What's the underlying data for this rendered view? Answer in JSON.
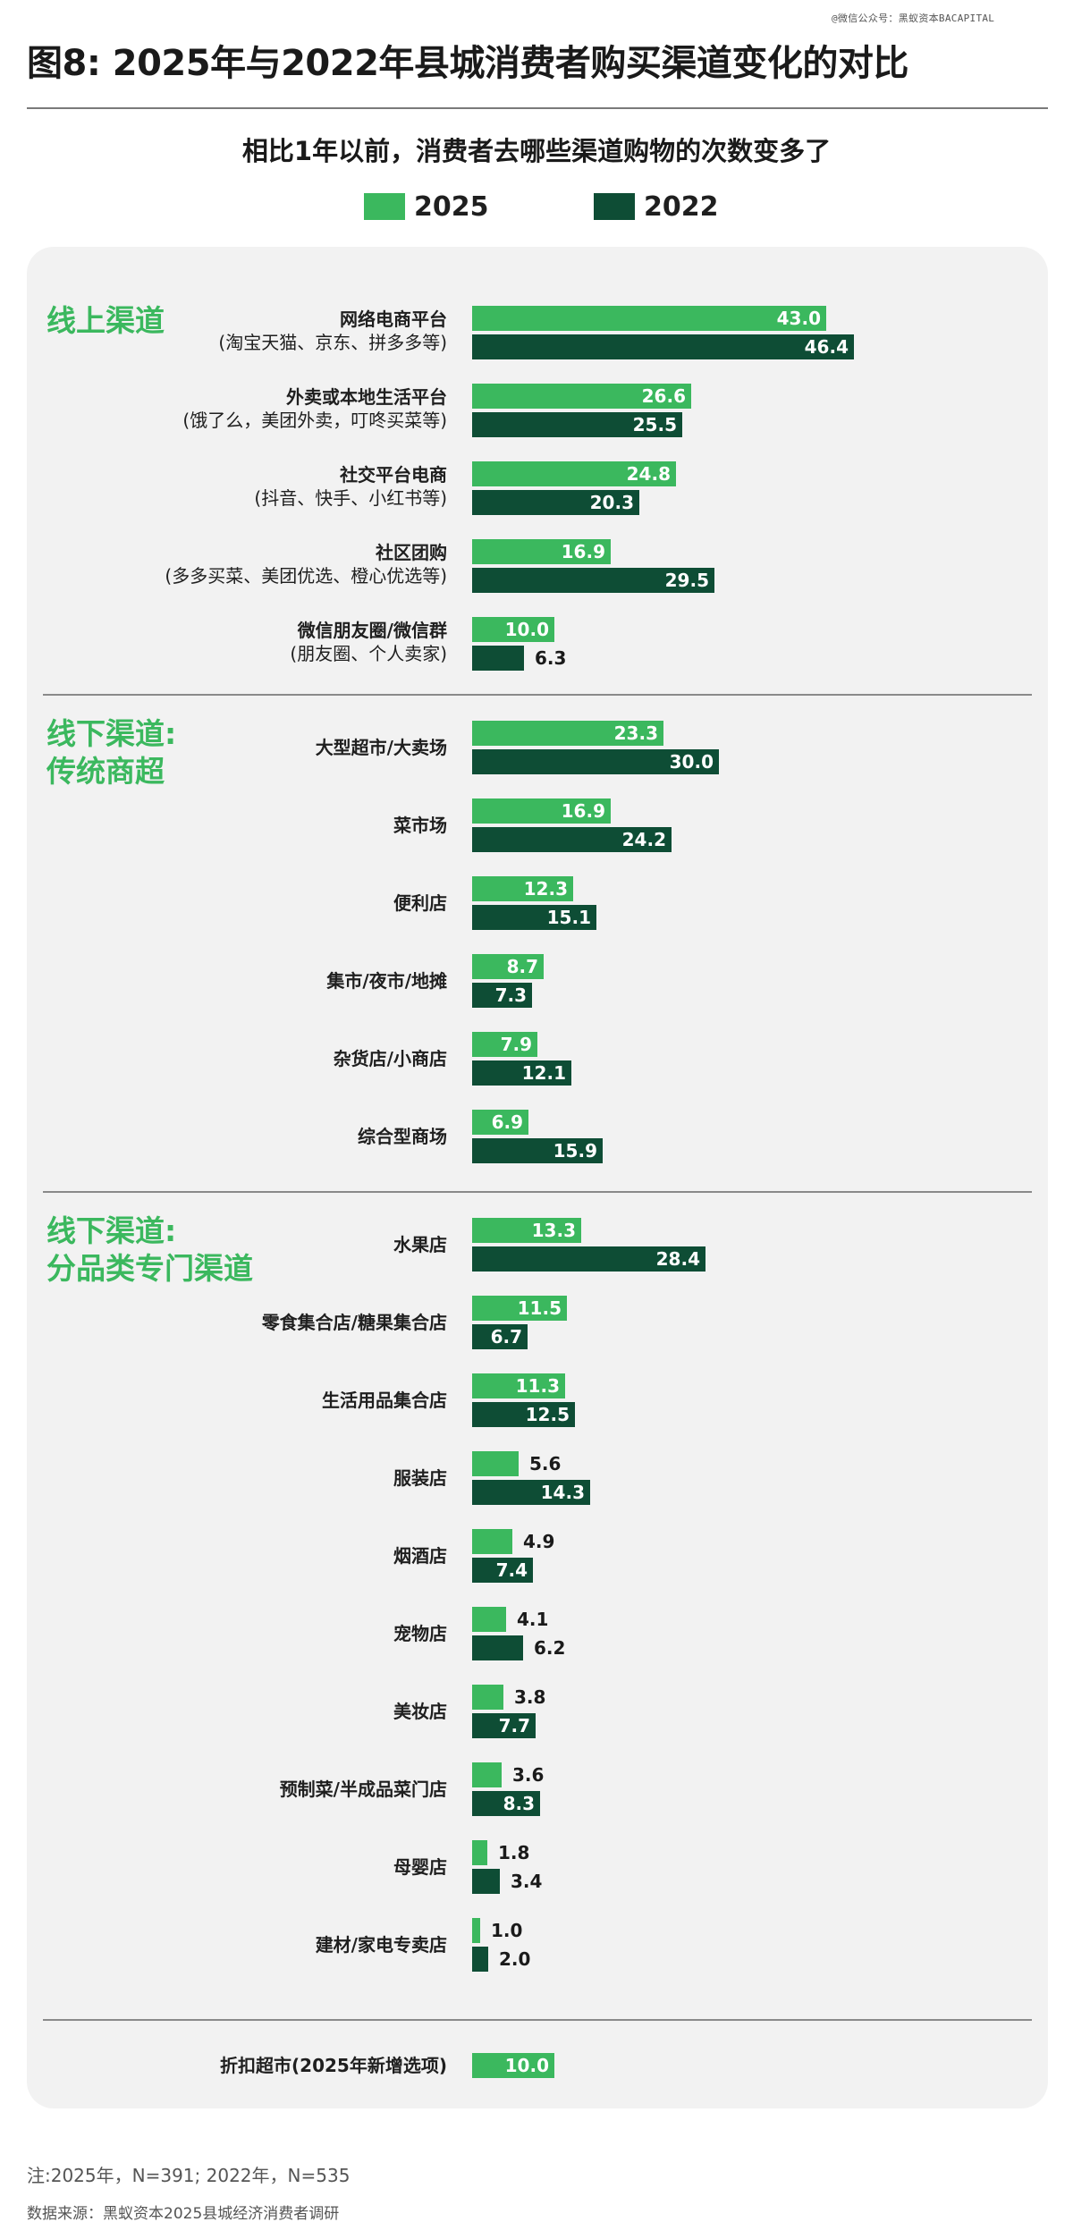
{
  "watermark": "@微信公众号：黑蚁资本BACAPITAL",
  "title": "图8: 2025年与2022年县城消费者购买渠道变化的对比",
  "colors": {
    "series_2025": "#3bb85e",
    "series_2022": "#0e4d35",
    "section_title": "#3bb85e",
    "panel": "#f2f2f2"
  },
  "chart_data": {
    "type": "bar",
    "orientation": "horizontal",
    "title": "相比1年以前，消费者去哪些渠道购物的次数变多了",
    "legend": [
      {
        "name": "2025",
        "color": "#3bb85e"
      },
      {
        "name": "2022",
        "color": "#0e4d35"
      }
    ],
    "legend_position": "top",
    "grid": false,
    "xlim": [
      0,
      47
    ],
    "sections": [
      {
        "title": "线上渠道",
        "items": [
          {
            "label": "网络电商平台",
            "sub": "(淘宝天猫、京东、拼多多等)",
            "v2025": 43.0,
            "v2022": 46.4
          },
          {
            "label": "外卖或本地生活平台",
            "sub": "(饿了么，美团外卖，叮咚买菜等)",
            "v2025": 26.6,
            "v2022": 25.5
          },
          {
            "label": "社交平台电商",
            "sub": "(抖音、快手、小红书等)",
            "v2025": 24.8,
            "v2022": 20.3
          },
          {
            "label": "社区团购",
            "sub": "(多多买菜、美团优选、橙心优选等)",
            "v2025": 16.9,
            "v2022": 29.5
          },
          {
            "label": "微信朋友圈/微信群",
            "sub": "(朋友圈、个人卖家)",
            "v2025": 10.0,
            "v2022": 6.3
          }
        ]
      },
      {
        "title": "线下渠道:\n传统商超",
        "items": [
          {
            "label": "大型超市/大卖场",
            "v2025": 23.3,
            "v2022": 30.0
          },
          {
            "label": "菜市场",
            "v2025": 16.9,
            "v2022": 24.2
          },
          {
            "label": "便利店",
            "v2025": 12.3,
            "v2022": 15.1
          },
          {
            "label": "集市/夜市/地摊",
            "v2025": 8.7,
            "v2022": 7.3
          },
          {
            "label": "杂货店/小商店",
            "v2025": 7.9,
            "v2022": 12.1
          },
          {
            "label": "综合型商场",
            "v2025": 6.9,
            "v2022": 15.9
          }
        ]
      },
      {
        "title": "线下渠道:\n分品类专门渠道",
        "items": [
          {
            "label": "水果店",
            "v2025": 13.3,
            "v2022": 28.4
          },
          {
            "label": "零食集合店/糖果集合店",
            "v2025": 11.5,
            "v2022": 6.7
          },
          {
            "label": "生活用品集合店",
            "v2025": 11.3,
            "v2022": 12.5
          },
          {
            "label": "服装店",
            "v2025": 5.6,
            "v2022": 14.3
          },
          {
            "label": "烟酒店",
            "v2025": 4.9,
            "v2022": 7.4
          },
          {
            "label": "宠物店",
            "v2025": 4.1,
            "v2022": 6.2
          },
          {
            "label": "美妆店",
            "v2025": 3.8,
            "v2022": 7.7
          },
          {
            "label": "预制菜/半成品菜门店",
            "v2025": 3.6,
            "v2022": 8.3
          },
          {
            "label": "母婴店",
            "v2025": 1.8,
            "v2022": 3.4
          },
          {
            "label": "建材/家电专卖店",
            "v2025": 1.0,
            "v2022": 2.0
          }
        ]
      },
      {
        "title": "",
        "items": [
          {
            "label": "折扣超市(2025年新增选项)",
            "v2025": 10.0,
            "v2022": null
          }
        ]
      }
    ]
  },
  "footnote": "注:2025年，N=391; 2022年，N=535",
  "source": "数据来源：黑蚁资本2025县城经济消费者调研"
}
